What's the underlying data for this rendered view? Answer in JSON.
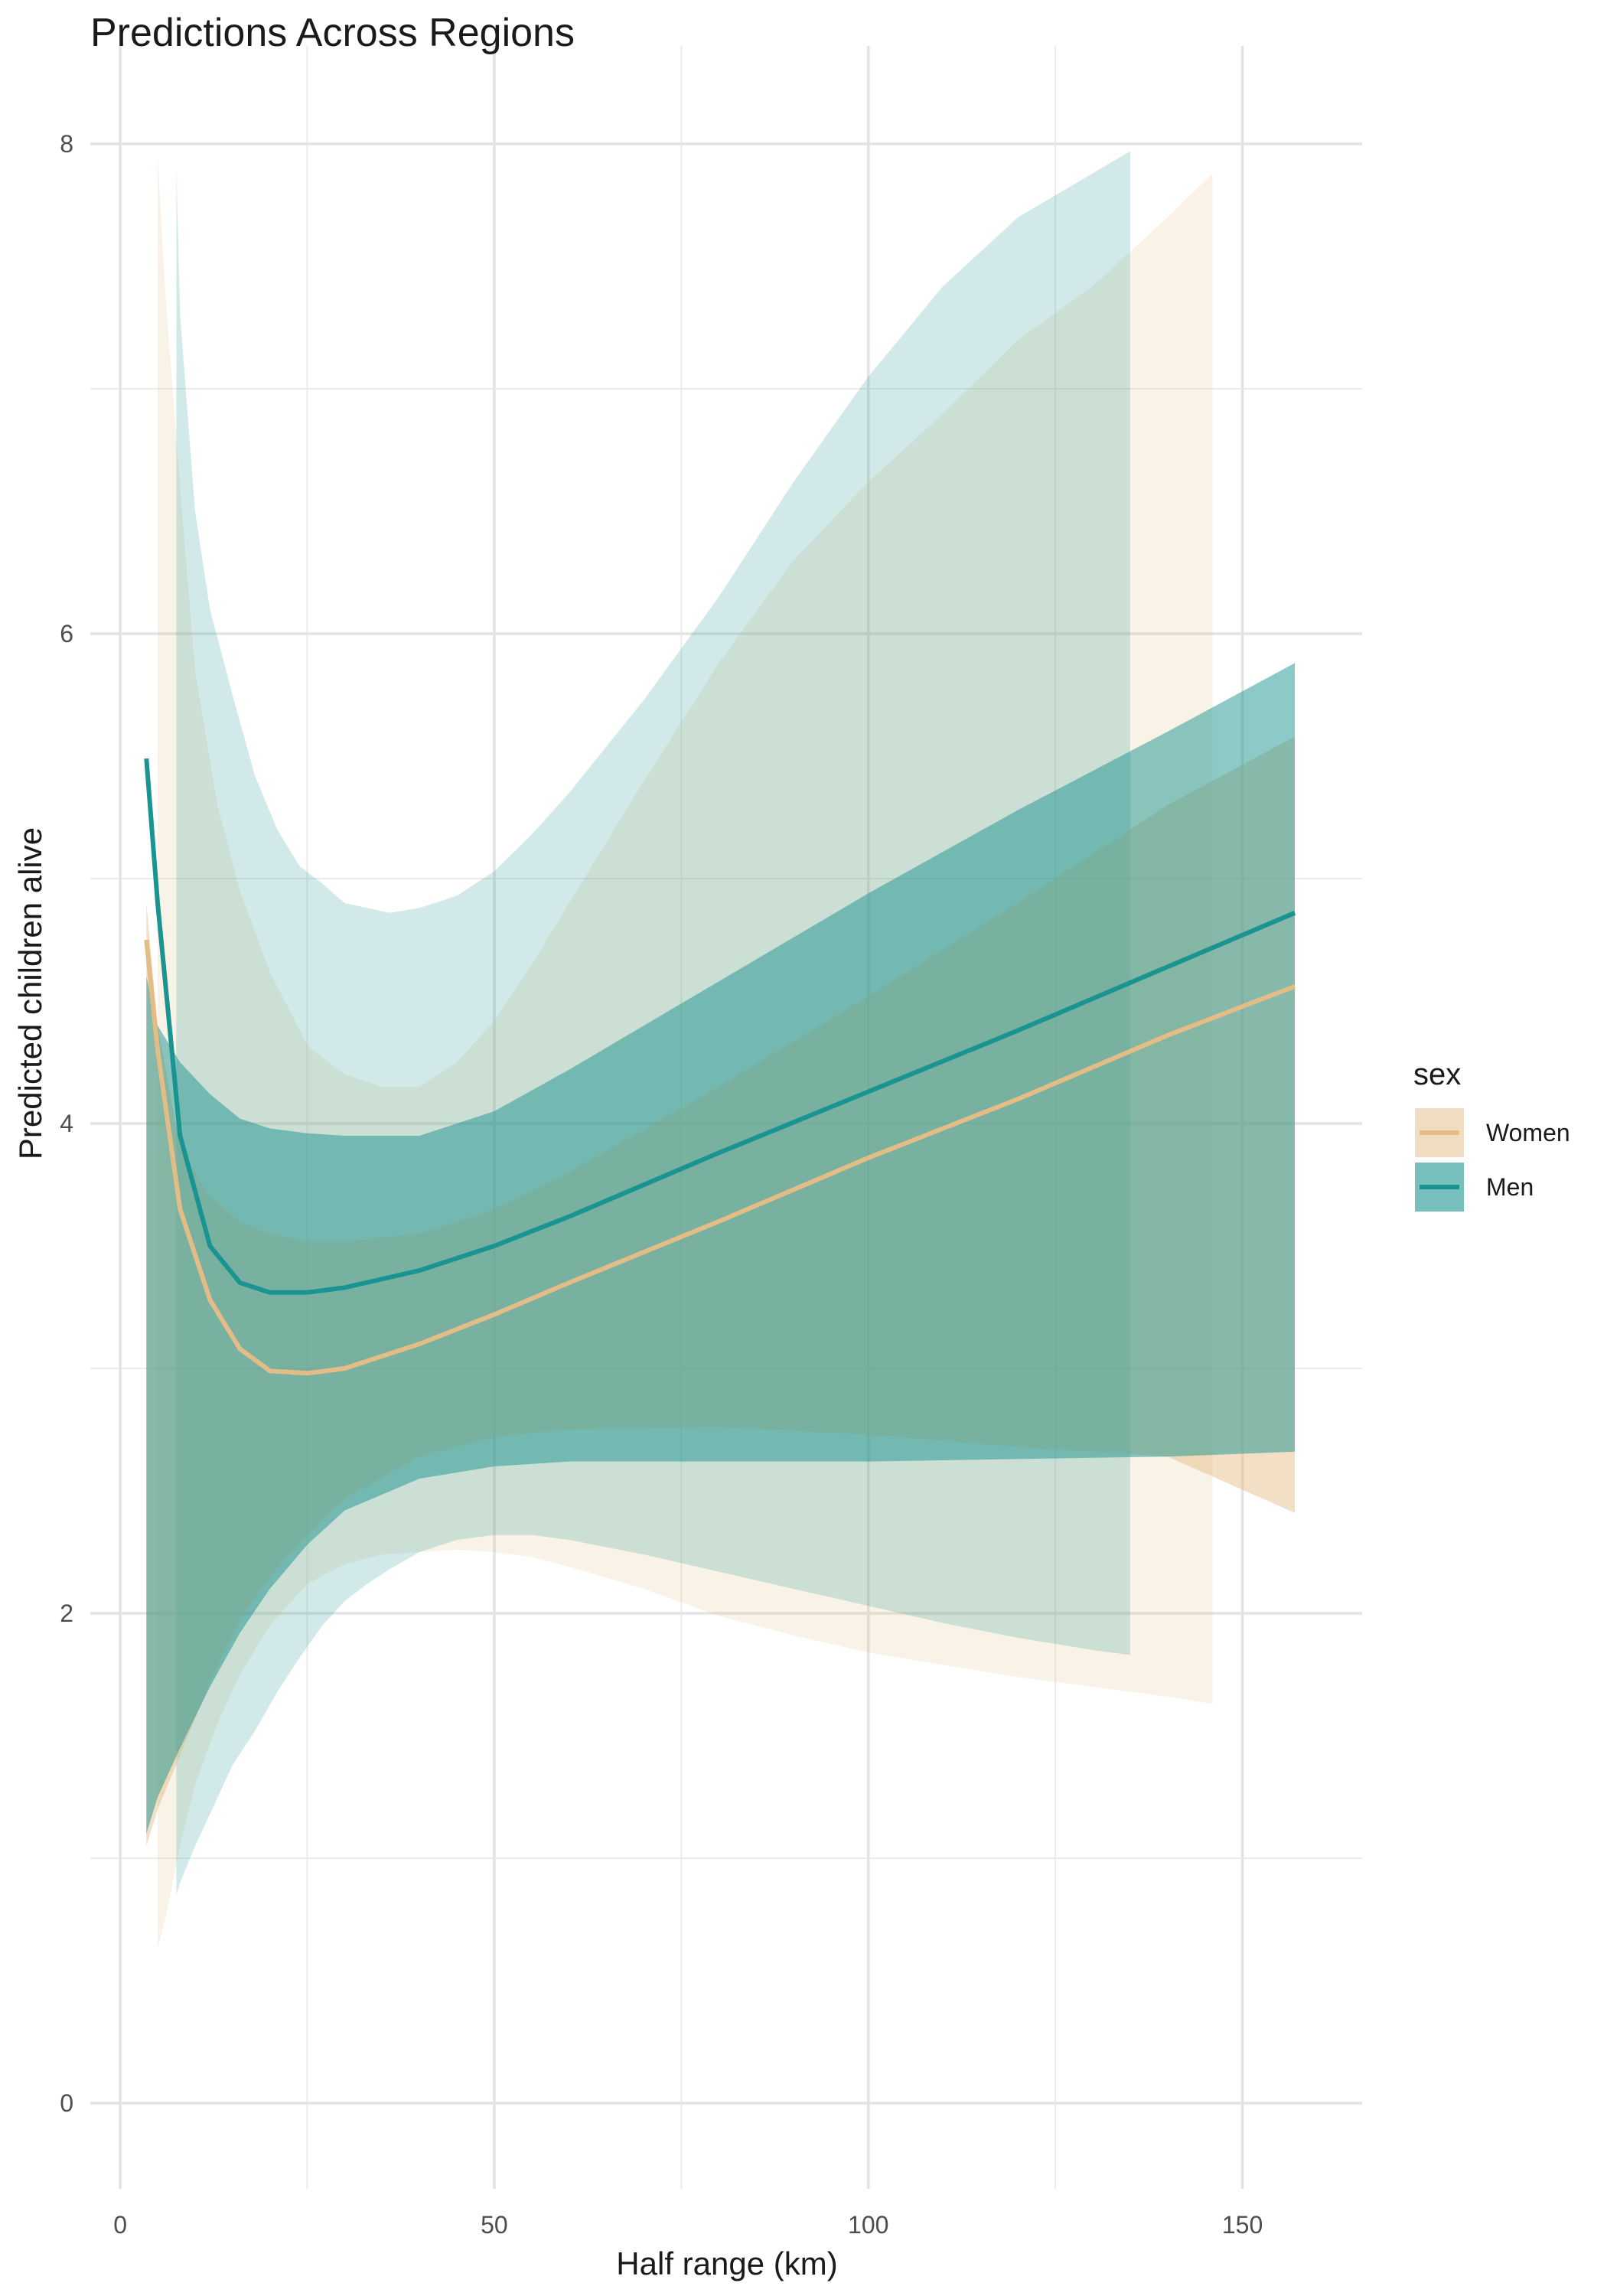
{
  "chart_data": {
    "type": "line",
    "title": "Predictions Across Regions",
    "xlabel": "Half range (km)",
    "ylabel": "Predicted children alive",
    "xlim": [
      -4,
      166
    ],
    "ylim": [
      -0.35,
      8.4
    ],
    "x_ticks": [
      0,
      50,
      100,
      150
    ],
    "y_ticks": [
      0,
      2,
      4,
      6,
      8
    ],
    "x_tick_labels": [
      "0",
      "50",
      "100",
      "150"
    ],
    "y_tick_labels": [
      "0",
      "2",
      "4",
      "6",
      "8"
    ],
    "grid": true,
    "legend": {
      "title": "sex",
      "position": "right",
      "entries": [
        "Women",
        "Men"
      ]
    },
    "series": [
      {
        "name": "Women",
        "color": "#E3BC86",
        "fit": {
          "x": [
            3.5,
            5,
            8,
            12,
            16,
            20,
            25,
            30,
            40,
            50,
            60,
            80,
            100,
            120,
            140,
            157
          ],
          "y": [
            4.75,
            4.3,
            3.65,
            3.28,
            3.08,
            2.99,
            2.98,
            3.0,
            3.1,
            3.22,
            3.35,
            3.6,
            3.86,
            4.1,
            4.36,
            4.56
          ]
        },
        "ribbon_all": {
          "x": [
            3.5,
            5,
            8,
            12,
            16,
            20,
            25,
            30,
            40,
            50,
            60,
            80,
            100,
            120,
            140,
            157
          ],
          "lower": [
            1.05,
            1.2,
            1.42,
            1.72,
            1.97,
            2.15,
            2.32,
            2.47,
            2.64,
            2.72,
            2.75,
            2.76,
            2.73,
            2.68,
            2.64,
            2.41
          ],
          "upper": [
            4.9,
            4.4,
            3.9,
            3.7,
            3.6,
            3.55,
            3.52,
            3.52,
            3.55,
            3.65,
            3.8,
            4.15,
            4.52,
            4.9,
            5.3,
            5.58
          ]
        },
        "ribbon_regions": {
          "x": [
            5,
            6,
            8,
            10,
            13,
            16,
            20,
            25,
            30,
            35,
            40,
            45,
            50,
            55,
            60,
            70,
            80,
            90,
            100,
            110,
            120,
            130,
            140,
            146
          ],
          "lower": [
            0.63,
            0.75,
            1.05,
            1.3,
            1.55,
            1.75,
            1.95,
            2.12,
            2.2,
            2.24,
            2.25,
            2.26,
            2.25,
            2.23,
            2.19,
            2.1,
            1.99,
            1.91,
            1.84,
            1.79,
            1.74,
            1.7,
            1.66,
            1.63
          ],
          "upper": [
            7.95,
            7.4,
            6.6,
            5.85,
            5.3,
            4.95,
            4.62,
            4.32,
            4.2,
            4.15,
            4.15,
            4.25,
            4.42,
            4.65,
            4.9,
            5.4,
            5.88,
            6.3,
            6.62,
            6.9,
            7.2,
            7.42,
            7.7,
            7.88
          ]
        }
      },
      {
        "name": "Men",
        "color": "#1A9490",
        "fit": {
          "x": [
            3.5,
            5,
            8,
            12,
            16,
            20,
            25,
            30,
            40,
            50,
            60,
            80,
            100,
            120,
            140,
            157
          ],
          "y": [
            5.49,
            4.9,
            3.95,
            3.5,
            3.35,
            3.31,
            3.31,
            3.33,
            3.4,
            3.5,
            3.62,
            3.88,
            4.13,
            4.38,
            4.64,
            4.86
          ]
        },
        "ribbon_all": {
          "x": [
            3.5,
            5,
            8,
            12,
            16,
            20,
            25,
            30,
            40,
            50,
            60,
            80,
            100,
            120,
            140,
            157
          ],
          "lower": [
            1.1,
            1.25,
            1.45,
            1.7,
            1.92,
            2.1,
            2.28,
            2.42,
            2.55,
            2.6,
            2.62,
            2.62,
            2.62,
            2.63,
            2.64,
            2.66
          ],
          "upper": [
            4.6,
            4.4,
            4.25,
            4.12,
            4.02,
            3.98,
            3.96,
            3.95,
            3.95,
            4.05,
            4.22,
            4.58,
            4.94,
            5.28,
            5.6,
            5.88
          ]
        },
        "ribbon_regions": {
          "x": [
            7.5,
            8,
            10,
            12,
            15,
            18,
            21,
            24,
            27,
            30,
            33,
            36,
            40,
            45,
            50,
            55,
            60,
            70,
            80,
            90,
            100,
            110,
            120,
            130,
            135
          ],
          "lower": [
            0.85,
            0.9,
            1.05,
            1.18,
            1.38,
            1.52,
            1.68,
            1.82,
            1.95,
            2.05,
            2.12,
            2.18,
            2.25,
            2.3,
            2.32,
            2.32,
            2.3,
            2.24,
            2.17,
            2.1,
            2.03,
            1.96,
            1.9,
            1.85,
            1.83
          ],
          "upper": [
            7.9,
            7.3,
            6.5,
            6.1,
            5.75,
            5.42,
            5.2,
            5.05,
            4.98,
            4.9,
            4.88,
            4.86,
            4.88,
            4.93,
            5.03,
            5.18,
            5.35,
            5.73,
            6.15,
            6.62,
            7.05,
            7.42,
            7.7,
            7.88,
            7.97
          ]
        }
      }
    ]
  }
}
